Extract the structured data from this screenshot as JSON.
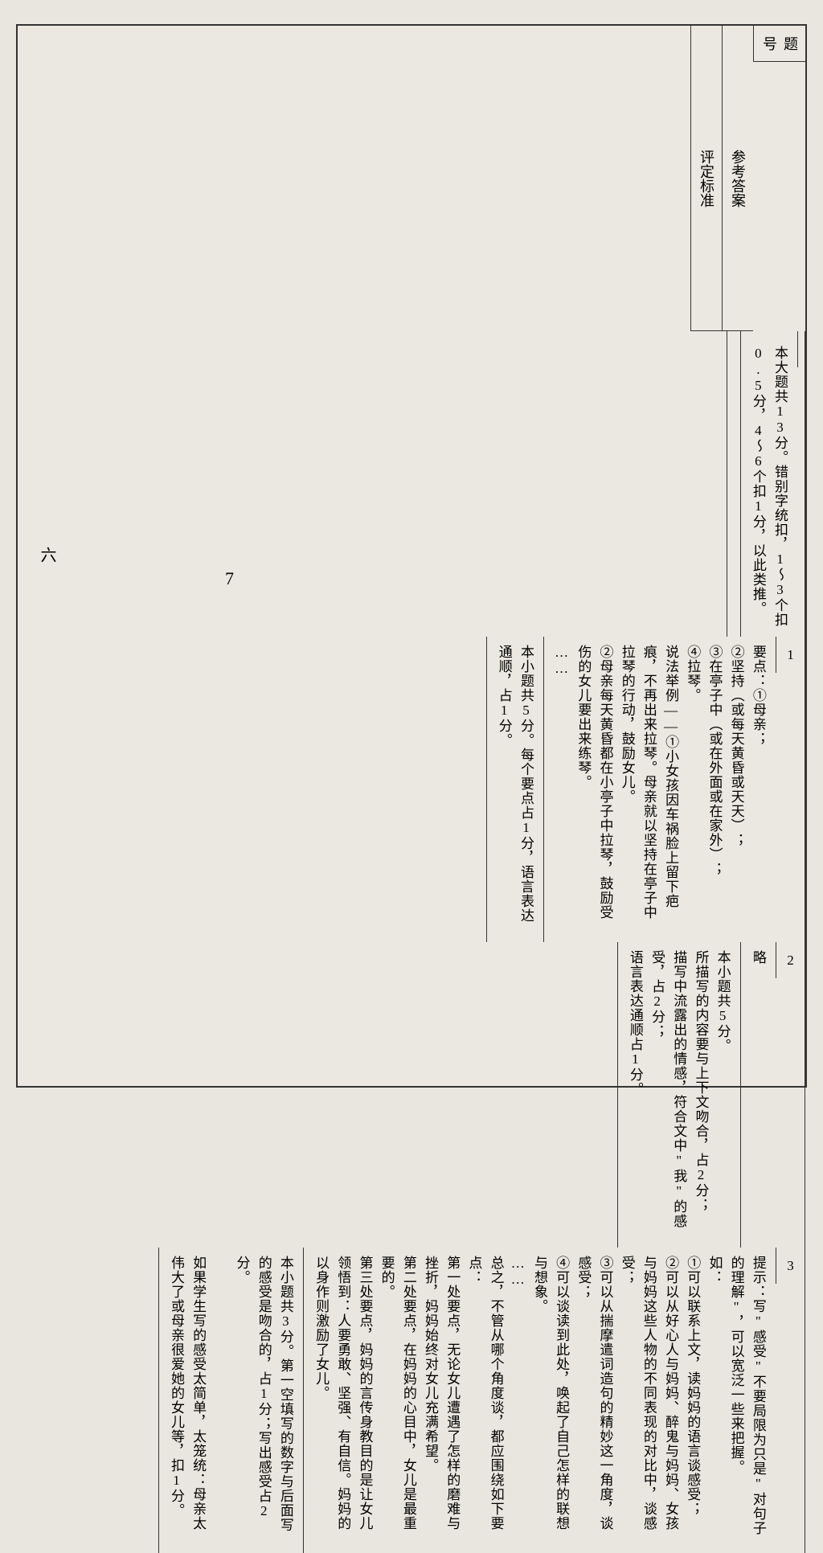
{
  "headers": {
    "num": "题号",
    "answer": "参考答案",
    "criteria": "评定标准"
  },
  "intro": {
    "answer": "本大题共13分。错别字统扣，1～3个扣0.5分，4～6个扣1分，以此类推。"
  },
  "section_label": "六",
  "page_number": "7",
  "questions": [
    {
      "num": "1",
      "answer_lines": [
        "要点：①母亲；",
        "②坚持（或每天黄昏或天天）；",
        "③在亭子中（或在外面或在家外）；",
        "④拉琴。",
        "说法举例——①小女孩因车祸脸上留下疤痕，不再出来拉琴。母亲就以坚持在亭子中拉琴的行动，鼓励女儿。",
        "②母亲每天黄昏都在小亭子中拉琴，鼓励受伤的女儿要出来练琴。",
        "……"
      ],
      "criteria_lines": [
        "本小题共5分。每个要点占1分，语言表达通顺，占1分。"
      ]
    },
    {
      "num": "2",
      "answer_lines": [
        "略"
      ],
      "criteria_lines": [
        "本小题共5分。",
        "所描写的内容要与上下文吻合，占2分；",
        "描写中流露出的情感，符合文中\"我\"的感受，占2分；",
        "语言表达通顺占1分。"
      ]
    },
    {
      "num": "3",
      "answer_lines": [
        "提示：写\"感受\"不要局限为只是\"对句子的理解\"，可以宽泛一些来把握。",
        "如：",
        "①可以联系上文，读妈妈的语言谈感受；",
        "②可以从好心人与妈妈、醉鬼与妈妈、女孩与妈妈这些人物的不同表现的对比中，谈感受；",
        "③可以从揣摩遣词造句的精妙这一角度，谈感受；",
        "④可以谈读到此处，唤起了自己怎样的联想与想象。",
        "……",
        "总之，不管从哪个角度谈，都应围绕如下要点：",
        "第一处要点，无论女儿遭遇了怎样的磨难与挫折，妈妈始终对女儿充满希望。",
        "第二处要点，在妈妈的心目中，女儿是最重要的。",
        "第三处要点，妈妈的言传身教目的是让女儿领悟到：人要勇敢、坚强、有自信。妈妈的以身作则激励了女儿。"
      ],
      "criteria_lines": [
        "本小题共3分。第一空填写的数字与后面写的感受是吻合的，占1分；写出感受占2分。",
        "",
        "如果学生写的感受太简单，太笼统：母亲太伟大了或母亲很爱她的女儿等，扣1分。"
      ]
    }
  ]
}
